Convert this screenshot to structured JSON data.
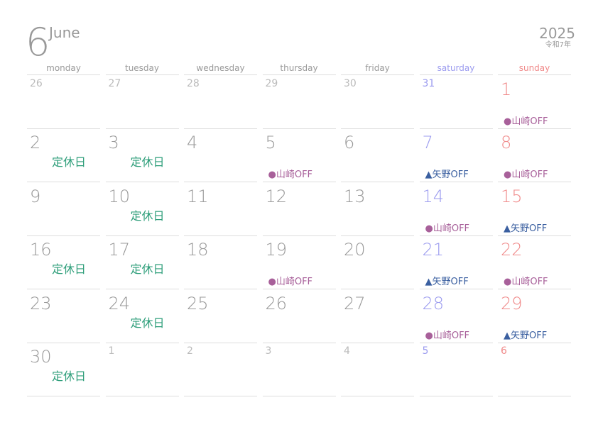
{
  "header": {
    "month_number": "6",
    "month_name": "June",
    "year": "2025",
    "era": "令和7年"
  },
  "weekdays": [
    "monday",
    "tuesday",
    "wednesday",
    "thursday",
    "friday",
    "saturday",
    "sunday"
  ],
  "weeks": [
    [
      {
        "day": 26
      },
      {
        "day": 27
      },
      {
        "day": 28
      },
      {
        "day": 29
      },
      {
        "day": 30
      },
      {
        "day": 31
      },
      {
        "day": 1,
        "event": "●山崎OFF"
      }
    ],
    [
      {
        "day": 2,
        "event": "定休日"
      },
      {
        "day": 3,
        "event": "定休日"
      },
      {
        "day": 4
      },
      {
        "day": 5,
        "event": "●山崎OFF"
      },
      {
        "day": 6
      },
      {
        "day": 7,
        "event": "▲矢野OFF"
      },
      {
        "day": 8,
        "event": "●山崎OFF"
      }
    ],
    [
      {
        "day": 9
      },
      {
        "day": 10,
        "event": "定休日"
      },
      {
        "day": 11
      },
      {
        "day": 12
      },
      {
        "day": 13
      },
      {
        "day": 14,
        "event": "●山崎OFF"
      },
      {
        "day": 15,
        "event": "▲矢野OFF"
      }
    ],
    [
      {
        "day": 16,
        "event": "定休日"
      },
      {
        "day": 17,
        "event": "定休日"
      },
      {
        "day": 18
      },
      {
        "day": 19,
        "event": "●山崎OFF"
      },
      {
        "day": 20
      },
      {
        "day": 21,
        "event": "▲矢野OFF"
      },
      {
        "day": 22,
        "event": "●山崎OFF"
      }
    ],
    [
      {
        "day": 23
      },
      {
        "day": 24,
        "event": "定休日"
      },
      {
        "day": 25
      },
      {
        "day": 26
      },
      {
        "day": 27
      },
      {
        "day": 28,
        "event": "●山崎OFF"
      },
      {
        "day": 29,
        "event": "▲矢野OFF"
      }
    ],
    [
      {
        "day": 30,
        "event": "定休日"
      },
      {
        "day": 1
      },
      {
        "day": 2
      },
      {
        "day": 3
      },
      {
        "day": 4
      },
      {
        "day": 5
      },
      {
        "day": 6
      }
    ]
  ]
}
